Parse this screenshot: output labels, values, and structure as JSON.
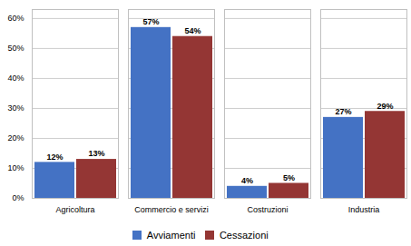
{
  "chart_data": {
    "type": "bar",
    "categories": [
      "Agricoltura",
      "Commercio e servizi",
      "Costruzioni",
      "Industria"
    ],
    "series": [
      {
        "name": "Avviamenti",
        "color": "#4472C4",
        "values": [
          12,
          57,
          4,
          27
        ],
        "value_labels": [
          "12%",
          "57%",
          "4%",
          "27%"
        ]
      },
      {
        "name": "Cessazioni",
        "color": "#943634",
        "values": [
          13,
          54,
          5,
          29
        ],
        "value_labels": [
          "13%",
          "54%",
          "5%",
          "29%"
        ]
      }
    ],
    "ylim": [
      0,
      63
    ],
    "yticks": [
      {
        "value": 0,
        "label": "0%"
      },
      {
        "value": 10,
        "label": "10%"
      },
      {
        "value": 20,
        "label": "20%"
      },
      {
        "value": 30,
        "label": "30%"
      },
      {
        "value": 40,
        "label": "40%"
      },
      {
        "value": 50,
        "label": "50%"
      },
      {
        "value": 60,
        "label": "60%"
      }
    ],
    "grid": true,
    "legend": "bottom",
    "data_labels": true
  }
}
